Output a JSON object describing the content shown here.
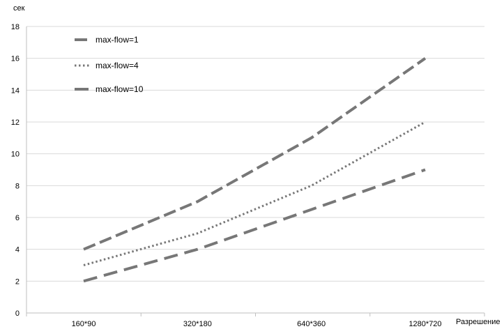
{
  "chart_data": {
    "type": "line",
    "title": "",
    "xlabel": "Разрешение",
    "ylabel": "сек",
    "categories": [
      "160*90",
      "320*180",
      "640*360",
      "1280*720"
    ],
    "ylim": [
      0,
      18
    ],
    "yticks": [
      "0",
      "2",
      "4",
      "6",
      "8",
      "10",
      "12",
      "14",
      "16",
      "18"
    ],
    "grid": true,
    "legend_position": "top-left",
    "series": [
      {
        "name": "max-flow=1",
        "values": [
          4,
          7,
          11,
          16
        ],
        "style": "dashed",
        "color": "#777777"
      },
      {
        "name": "max-flow=4",
        "values": [
          3,
          5,
          8,
          12
        ],
        "style": "dotted",
        "color": "#777777"
      },
      {
        "name": "max-flow=10",
        "values": [
          2,
          4,
          6.5,
          9
        ],
        "style": "long-dashed",
        "color": "#777777"
      }
    ]
  }
}
